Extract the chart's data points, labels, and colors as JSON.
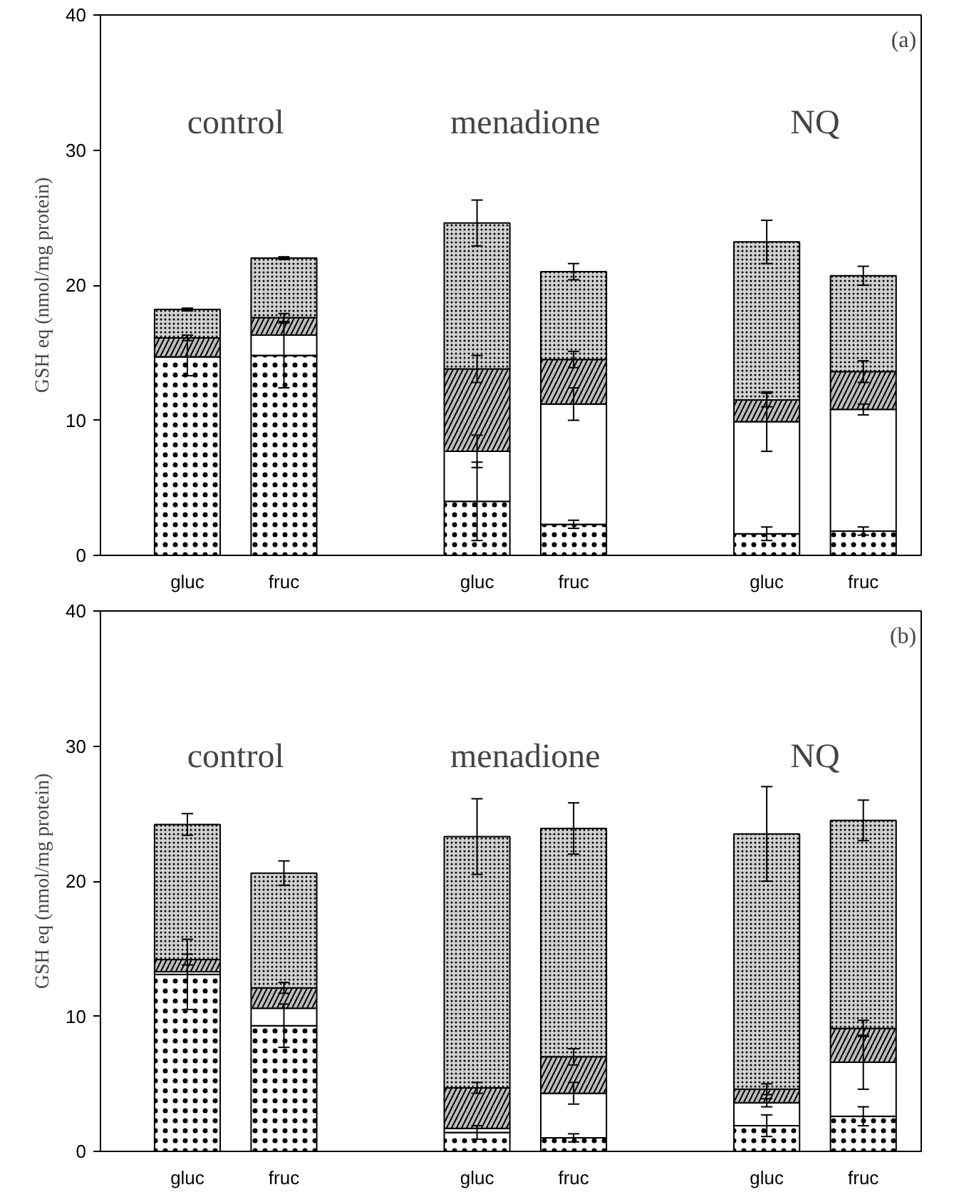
{
  "chart_data": [
    {
      "type": "bar",
      "ylabel": "GSH eq (nmol/mg protein)",
      "stacked": true,
      "categories": [
        "gluc",
        "fruc",
        null,
        "gluc",
        "fruc",
        null,
        "gluc",
        "fruc"
      ],
      "ylim": [
        0,
        40
      ],
      "yticks": [
        0,
        10,
        20,
        30,
        40
      ],
      "grid": false,
      "annotations": [
        "control",
        "menadione",
        "NQ",
        "(a)"
      ],
      "series": [
        {
          "color": "#ffffff",
          "values": [
            14.7,
            14.8,
            null,
            4.0,
            2.3,
            null,
            1.6,
            1.8
          ],
          "errors": [
            1.4,
            2.4,
            null,
            2.9,
            0.3,
            null,
            0.5,
            0.3
          ]
        },
        {
          "color": "#ffffff",
          "values": [
            0,
            1.5,
            null,
            3.7,
            8.9,
            null,
            8.3,
            9.0
          ],
          "errors": [
            null,
            null,
            null,
            1.2,
            1.2,
            null,
            2.2,
            0.4
          ]
        },
        {
          "color": "#bdbdbd",
          "values": [
            1.4,
            1.3,
            null,
            6.1,
            3.3,
            null,
            1.6,
            2.8
          ],
          "errors": [
            0.2,
            0.3,
            null,
            1.0,
            0.6,
            null,
            0.5,
            0.8
          ]
        },
        {
          "color": "#d0d0d0",
          "values": [
            2.1,
            4.4,
            null,
            10.8,
            6.5,
            null,
            11.7,
            7.1
          ],
          "errors": [
            0.1,
            0.1,
            null,
            1.7,
            0.6,
            null,
            1.6,
            0.7
          ]
        }
      ]
    },
    {
      "type": "bar",
      "ylabel": "GSH eq (nmol/mg protein)",
      "stacked": true,
      "categories": [
        "gluc",
        "fruc",
        null,
        "gluc",
        "fruc",
        null,
        "gluc",
        "fruc"
      ],
      "ylim": [
        0,
        40
      ],
      "yticks": [
        0,
        10,
        20,
        30,
        40
      ],
      "grid": false,
      "annotations": [
        "control",
        "menadione",
        "NQ",
        "(b)"
      ],
      "series": [
        {
          "color": "#ffffff",
          "values": [
            13.1,
            9.3,
            null,
            1.4,
            1.0,
            null,
            1.9,
            2.6
          ],
          "errors": [
            2.6,
            1.6,
            null,
            0.5,
            0.3,
            null,
            0.8,
            0.7
          ]
        },
        {
          "color": "#ffffff",
          "values": [
            0.2,
            1.3,
            null,
            0.3,
            3.3,
            null,
            1.7,
            4.0
          ],
          "errors": [
            null,
            null,
            null,
            null,
            0.8,
            null,
            0.3,
            2.0
          ]
        },
        {
          "color": "#bdbdbd",
          "values": [
            0.9,
            1.5,
            null,
            3.0,
            2.7,
            null,
            1.0,
            2.5
          ],
          "errors": [
            0.4,
            0.4,
            null,
            0.4,
            0.6,
            null,
            0.4,
            0.6
          ]
        },
        {
          "color": "#d0d0d0",
          "values": [
            10.0,
            8.5,
            null,
            18.6,
            16.9,
            null,
            18.9,
            15.4
          ],
          "errors": [
            0.8,
            0.9,
            null,
            2.8,
            1.9,
            null,
            3.5,
            1.5
          ]
        }
      ]
    }
  ]
}
